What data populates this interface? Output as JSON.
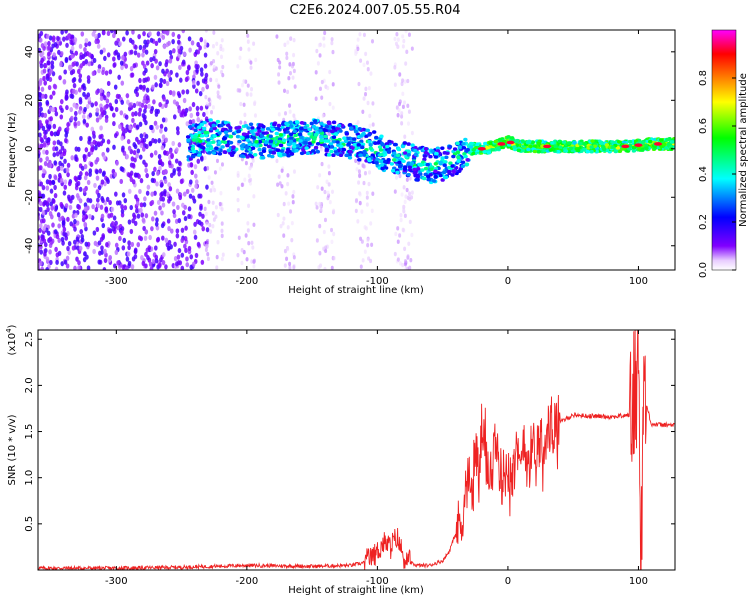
{
  "title": "C2E6.2024.007.05.55.R04",
  "chart_data": [
    {
      "type": "heatmap",
      "xlabel": "Height of straight line (km)",
      "ylabel": "Frequency (Hz)",
      "xlim": [
        -360,
        128
      ],
      "ylim": [
        -50,
        49
      ],
      "xticks": [
        -300,
        -200,
        -100,
        0,
        100
      ],
      "yticks": [
        -40,
        -20,
        0,
        20,
        40
      ],
      "colorbar": {
        "label": "Normalized spectral amplitude",
        "range": [
          0.0,
          1.0
        ],
        "ticks": [
          0.0,
          0.2,
          0.4,
          0.6,
          0.8
        ],
        "colors": [
          "#ffffff",
          "#8000ff",
          "#0000ff",
          "#00ffff",
          "#00ff00",
          "#ffff00",
          "#ff8000",
          "#ff0000",
          "#ff00ff"
        ]
      },
      "ridge": {
        "x": [
          -245,
          -230,
          -210,
          -190,
          -170,
          -150,
          -130,
          -110,
          -95,
          -80,
          -70,
          -60,
          -50,
          -40,
          -30,
          -20,
          -10,
          0,
          10,
          30,
          60,
          90,
          110,
          128
        ],
        "y": [
          2,
          5,
          4,
          3,
          4,
          5,
          4,
          2,
          -2,
          -4,
          -6,
          -7,
          -6,
          -4,
          0,
          0,
          1,
          3,
          1,
          1,
          1,
          1,
          2,
          2
        ]
      }
    },
    {
      "type": "line",
      "xlabel": "Height of straight line (km)",
      "ylabel": "SNR (10 * v/v)",
      "yscale_label": "(x10",
      "yscale_exp": "4",
      "xlim": [
        -360,
        128
      ],
      "ylim": [
        0,
        2.6
      ],
      "xticks": [
        -300,
        -200,
        -100,
        0,
        100
      ],
      "yticks": [
        0.5,
        1.0,
        1.5,
        2.0,
        2.5
      ],
      "ytick_labels": [
        "0.5",
        "1.0",
        "1.5",
        "2.0",
        "2.5"
      ],
      "color": "#ee2222",
      "series": [
        {
          "x": [
            -360,
            -300,
            -250,
            -200,
            -150,
            -120,
            -110,
            -100,
            -95,
            -90,
            -85,
            -80,
            -75,
            -70,
            -60,
            -50,
            -45,
            -40,
            -35,
            -32,
            -30,
            -27,
            -25,
            -22,
            -20,
            -17,
            -15,
            -12,
            -10,
            -5,
            0,
            5,
            10,
            12,
            15,
            20,
            25,
            30,
            40,
            50,
            60,
            80,
            95,
            100,
            102,
            104,
            110,
            120,
            128
          ],
          "y": [
            0.02,
            0.02,
            0.03,
            0.05,
            0.04,
            0.05,
            0.08,
            0.2,
            0.3,
            0.25,
            0.35,
            0.15,
            0.08,
            0.05,
            0.05,
            0.1,
            0.2,
            0.4,
            0.6,
            0.9,
            1.0,
            0.7,
            1.4,
            0.9,
            1.6,
            1.1,
            1.2,
            1.0,
            1.3,
            1.0,
            1.1,
            1.3,
            1.05,
            1.5,
            1.2,
            1.35,
            1.4,
            1.5,
            1.6,
            1.68,
            1.67,
            1.66,
            1.68,
            2.3,
            0.3,
            1.9,
            1.58,
            1.57,
            1.57
          ]
        }
      ]
    }
  ]
}
